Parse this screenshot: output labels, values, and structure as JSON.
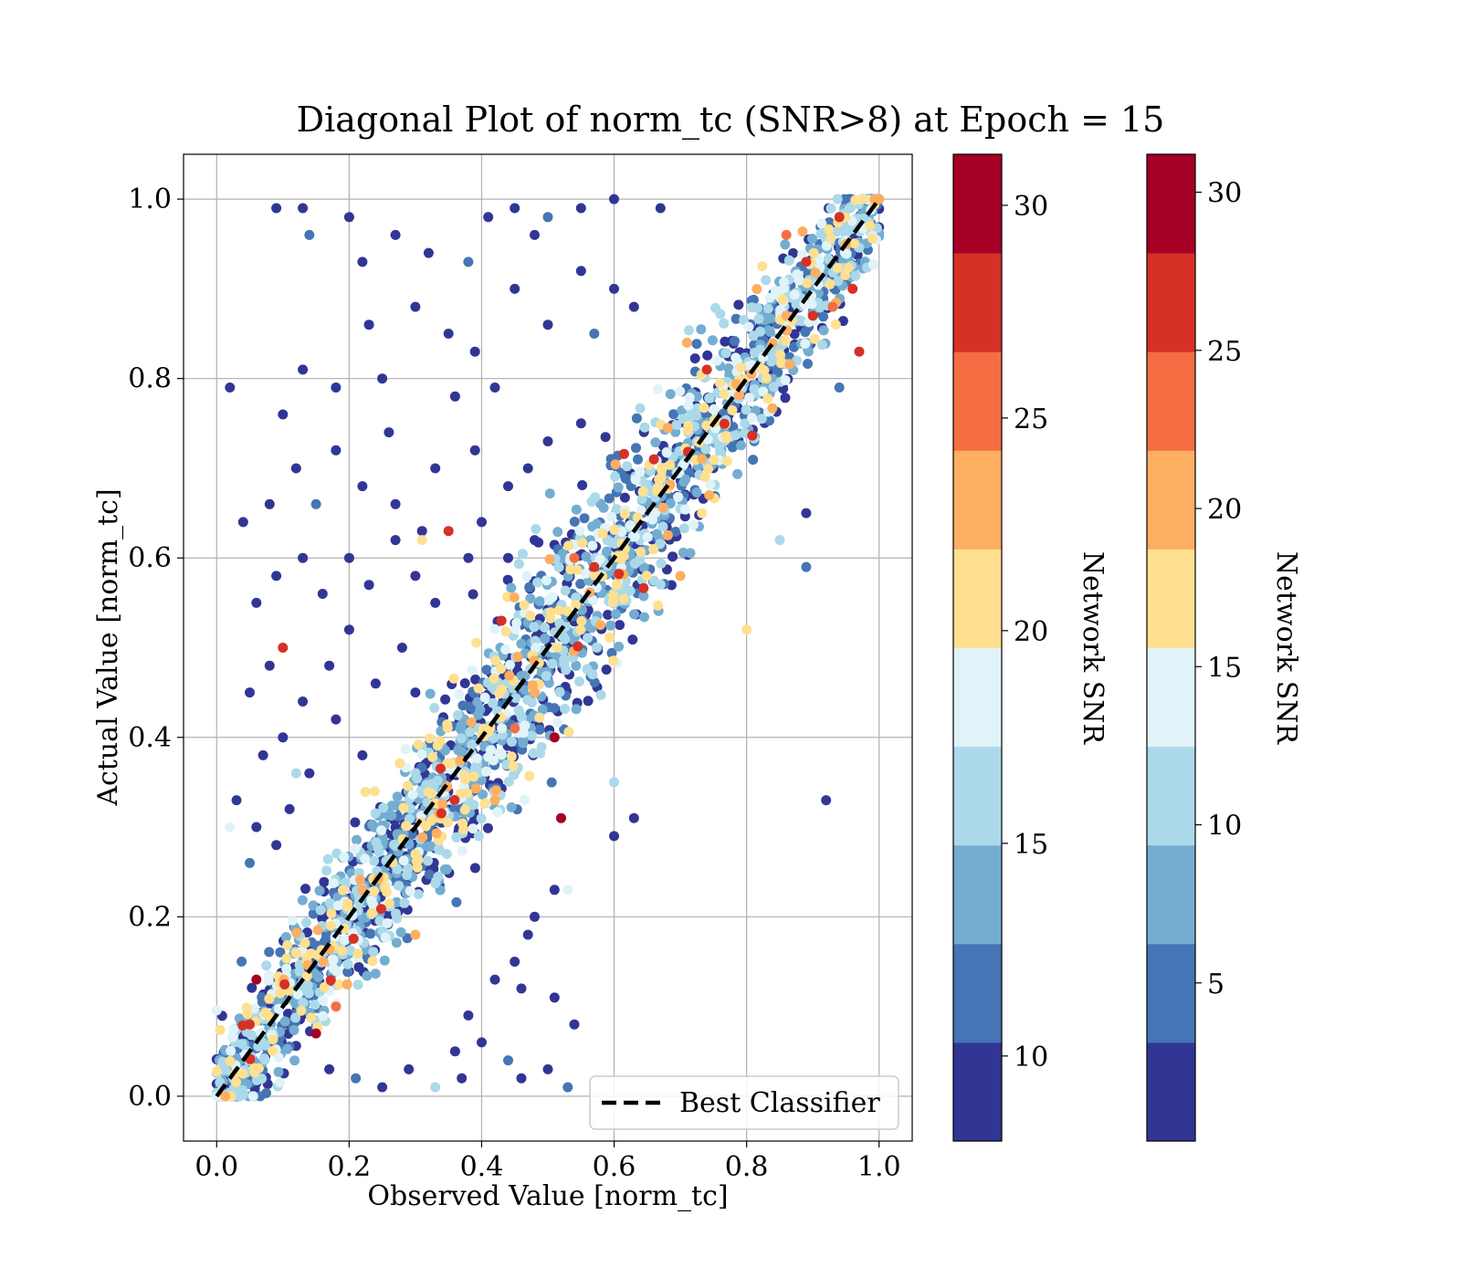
{
  "chart_data": {
    "type": "scatter",
    "title": "Diagonal Plot of norm_tc (SNR>8) at Epoch = 15",
    "xlabel": "Observed Value [norm_tc]",
    "ylabel": "Actual Value [norm_tc]",
    "xlim": [
      -0.05,
      1.05
    ],
    "ylim": [
      -0.05,
      1.05
    ],
    "xticks": [
      "0.0",
      "0.2",
      "0.4",
      "0.6",
      "0.8",
      "1.0"
    ],
    "yticks": [
      "0.0",
      "0.2",
      "0.4",
      "0.6",
      "0.8",
      "1.0"
    ],
    "grid": true,
    "legend": {
      "placement": "lower right",
      "entries": [
        "Best Classifier"
      ]
    },
    "reference_line": {
      "name": "Best Classifier",
      "style": "dashed",
      "color": "#000000",
      "x": [
        0,
        1
      ],
      "y": [
        0,
        1
      ]
    },
    "colorbars": [
      {
        "label": "Network SNR",
        "range": [
          8,
          31.2
        ],
        "ticks": [
          "10",
          "15",
          "20",
          "25",
          "30"
        ],
        "tick_values": [
          10,
          15,
          20,
          25,
          30
        ]
      },
      {
        "label": "Network SNR",
        "range": [
          0,
          31.2
        ],
        "ticks": [
          "5",
          "10",
          "15",
          "20",
          "25",
          "30"
        ],
        "tick_values": [
          5,
          10,
          15,
          20,
          25,
          30
        ]
      }
    ],
    "colormap": [
      "#313695",
      "#4575b4",
      "#74add1",
      "#abd9e9",
      "#e0f3f8",
      "#fee090",
      "#fdae61",
      "#f46d43",
      "#d73027",
      "#a50026"
    ],
    "points": [
      [
        0.02,
        0.79,
        9
      ],
      [
        0.09,
        0.99,
        9
      ],
      [
        0.13,
        0.99,
        9
      ],
      [
        0.14,
        0.96,
        12
      ],
      [
        0.2,
        0.98,
        9
      ],
      [
        0.22,
        0.93,
        9
      ],
      [
        0.27,
        0.96,
        9
      ],
      [
        0.32,
        0.94,
        9
      ],
      [
        0.38,
        0.93,
        12
      ],
      [
        0.41,
        0.98,
        9
      ],
      [
        0.45,
        0.99,
        9
      ],
      [
        0.48,
        0.96,
        9
      ],
      [
        0.5,
        0.98,
        12
      ],
      [
        0.55,
        0.99,
        9
      ],
      [
        0.6,
        1.0,
        9
      ],
      [
        0.67,
        0.99,
        9
      ],
      [
        0.23,
        0.86,
        9
      ],
      [
        0.25,
        0.8,
        9
      ],
      [
        0.3,
        0.88,
        9
      ],
      [
        0.35,
        0.85,
        9
      ],
      [
        0.39,
        0.83,
        9
      ],
      [
        0.45,
        0.9,
        9
      ],
      [
        0.5,
        0.86,
        9
      ],
      [
        0.55,
        0.92,
        9
      ],
      [
        0.57,
        0.85,
        12
      ],
      [
        0.6,
        0.9,
        9
      ],
      [
        0.63,
        0.88,
        9
      ],
      [
        0.13,
        0.81,
        9
      ],
      [
        0.18,
        0.79,
        9
      ],
      [
        0.1,
        0.76,
        9
      ],
      [
        0.04,
        0.64,
        9
      ],
      [
        0.08,
        0.66,
        9
      ],
      [
        0.12,
        0.7,
        9
      ],
      [
        0.15,
        0.66,
        12
      ],
      [
        0.18,
        0.72,
        9
      ],
      [
        0.22,
        0.68,
        9
      ],
      [
        0.26,
        0.74,
        9
      ],
      [
        0.27,
        0.66,
        9
      ],
      [
        0.31,
        0.63,
        9
      ],
      [
        0.33,
        0.7,
        9
      ],
      [
        0.36,
        0.78,
        9
      ],
      [
        0.39,
        0.72,
        9
      ],
      [
        0.42,
        0.79,
        9
      ],
      [
        0.44,
        0.68,
        9
      ],
      [
        0.47,
        0.7,
        9
      ],
      [
        0.5,
        0.73,
        9
      ],
      [
        0.55,
        0.75,
        9
      ],
      [
        0.06,
        0.55,
        9
      ],
      [
        0.09,
        0.58,
        9
      ],
      [
        0.13,
        0.6,
        9
      ],
      [
        0.16,
        0.56,
        9
      ],
      [
        0.2,
        0.6,
        9
      ],
      [
        0.23,
        0.57,
        9
      ],
      [
        0.27,
        0.62,
        9
      ],
      [
        0.3,
        0.58,
        9
      ],
      [
        0.33,
        0.55,
        9
      ],
      [
        0.38,
        0.6,
        9
      ],
      [
        0.4,
        0.64,
        9
      ],
      [
        0.44,
        0.6,
        9
      ],
      [
        0.48,
        0.62,
        9
      ],
      [
        0.31,
        0.62,
        21
      ],
      [
        0.35,
        0.63,
        27
      ],
      [
        0.05,
        0.45,
        9
      ],
      [
        0.08,
        0.48,
        9
      ],
      [
        0.1,
        0.5,
        27
      ],
      [
        0.13,
        0.44,
        9
      ],
      [
        0.17,
        0.48,
        9
      ],
      [
        0.2,
        0.52,
        9
      ],
      [
        0.24,
        0.46,
        9
      ],
      [
        0.28,
        0.5,
        9
      ],
      [
        0.3,
        0.45,
        9
      ],
      [
        0.07,
        0.38,
        9
      ],
      [
        0.1,
        0.4,
        9
      ],
      [
        0.14,
        0.36,
        9
      ],
      [
        0.18,
        0.42,
        9
      ],
      [
        0.22,
        0.38,
        9
      ],
      [
        0.03,
        0.33,
        9
      ],
      [
        0.06,
        0.3,
        9
      ],
      [
        0.09,
        0.28,
        9
      ],
      [
        0.11,
        0.32,
        9
      ],
      [
        0.02,
        0.3,
        18
      ],
      [
        0.05,
        0.26,
        12
      ],
      [
        0.12,
        0.36,
        15
      ],
      [
        0.51,
        0.4,
        31
      ],
      [
        0.52,
        0.31,
        31
      ],
      [
        0.15,
        0.07,
        31
      ],
      [
        0.06,
        0.13,
        31
      ],
      [
        0.05,
        0.08,
        28
      ],
      [
        0.92,
        0.33,
        9
      ],
      [
        0.89,
        0.65,
        9
      ],
      [
        0.89,
        0.59,
        12
      ],
      [
        0.85,
        0.62,
        15
      ],
      [
        0.94,
        0.79,
        12
      ],
      [
        0.6,
        0.29,
        9
      ],
      [
        0.6,
        0.35,
        15
      ],
      [
        0.63,
        0.31,
        9
      ],
      [
        0.53,
        0.23,
        18
      ],
      [
        0.51,
        0.23,
        9
      ],
      [
        0.48,
        0.2,
        9
      ],
      [
        0.47,
        0.18,
        9
      ],
      [
        0.45,
        0.15,
        9
      ],
      [
        0.46,
        0.12,
        9
      ],
      [
        0.51,
        0.11,
        9
      ],
      [
        0.54,
        0.08,
        9
      ],
      [
        0.42,
        0.13,
        9
      ],
      [
        0.38,
        0.09,
        9
      ],
      [
        0.4,
        0.06,
        9
      ],
      [
        0.44,
        0.04,
        12
      ],
      [
        0.5,
        0.03,
        9
      ],
      [
        0.53,
        0.01,
        12
      ],
      [
        0.46,
        0.02,
        9
      ],
      [
        0.37,
        0.02,
        9
      ],
      [
        0.33,
        0.01,
        15
      ],
      [
        0.29,
        0.03,
        9
      ],
      [
        0.25,
        0.01,
        9
      ],
      [
        0.21,
        0.02,
        12
      ],
      [
        0.17,
        0.03,
        9
      ],
      [
        0.36,
        0.05,
        9
      ],
      [
        0.94,
        0.98,
        27
      ],
      [
        0.95,
        0.95,
        23
      ],
      [
        0.96,
        0.9,
        27
      ],
      [
        0.97,
        0.83,
        28
      ],
      [
        0.89,
        0.93,
        27
      ],
      [
        0.86,
        0.96,
        26
      ],
      [
        0.74,
        0.81,
        27
      ],
      [
        0.71,
        0.84,
        24
      ],
      [
        0.66,
        0.71,
        27
      ],
      [
        0.57,
        0.59,
        27
      ],
      [
        0.54,
        0.6,
        26
      ],
      [
        0.43,
        0.53,
        27
      ],
      [
        0.48,
        0.45,
        24
      ],
      [
        0.42,
        0.33,
        24
      ],
      [
        0.45,
        0.41,
        26
      ],
      [
        0.22,
        0.23,
        24
      ],
      [
        0.18,
        0.1,
        25
      ],
      [
        0.3,
        0.18,
        24
      ],
      [
        0.7,
        0.58,
        24
      ],
      [
        0.8,
        0.52,
        21
      ],
      [
        0.86,
        0.87,
        24
      ],
      [
        0.83,
        0.8,
        21
      ],
      [
        0.9,
        0.87,
        27
      ],
      [
        0.93,
        0.88,
        25
      ]
    ],
    "band": {
      "count": 2600,
      "x_range": [
        0,
        1
      ],
      "center": "y = x",
      "half_width_low": 0.05,
      "half_width_mid": 0.11,
      "half_width_high": 0.05
    }
  }
}
